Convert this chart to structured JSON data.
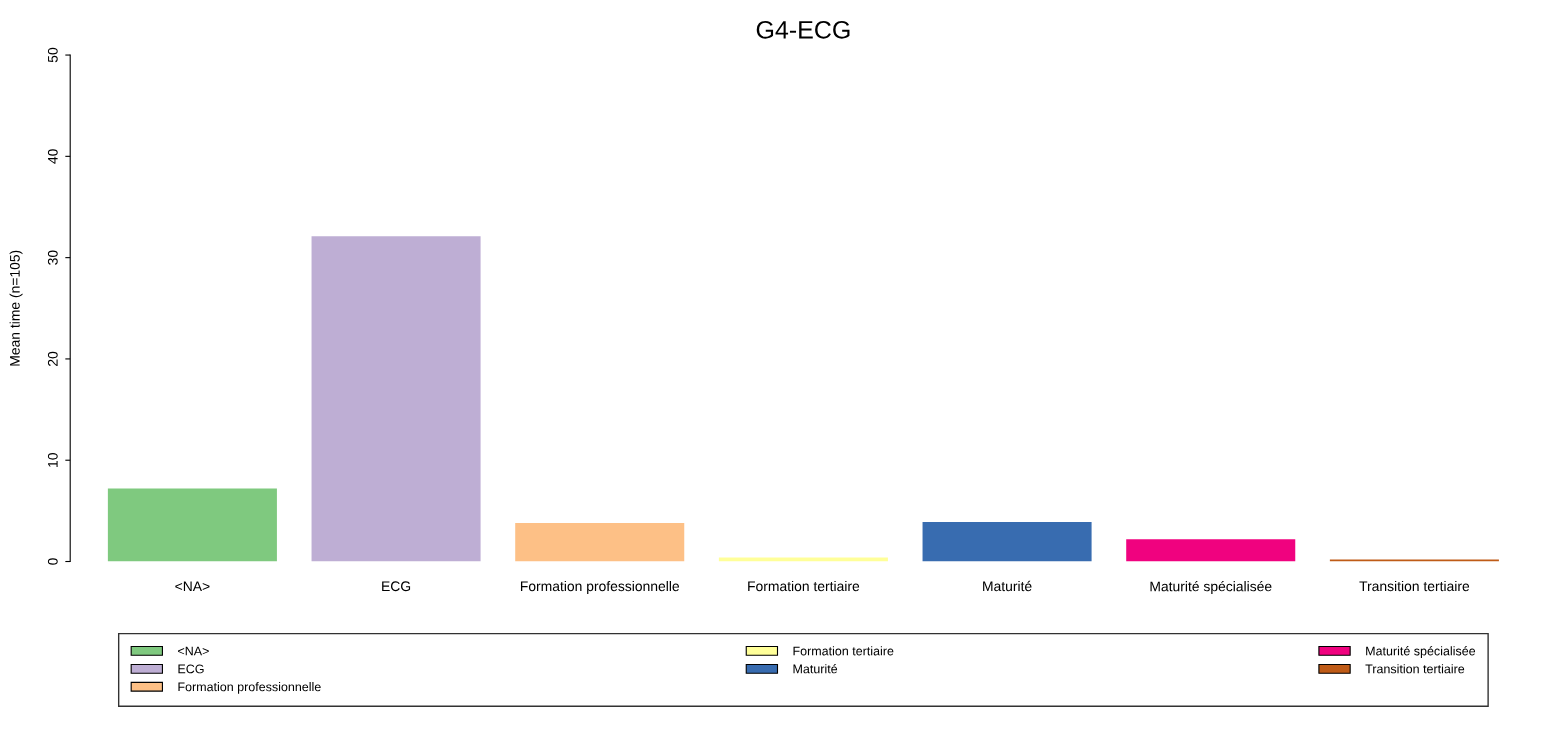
{
  "chart_data": {
    "type": "bar",
    "title": "G4-ECG",
    "ylabel": "Mean time (n=105)",
    "categories": [
      "<NA>",
      "ECG",
      "Formation professionnelle",
      "Formation tertiaire",
      "Maturité",
      "Maturité spécialisée",
      "Transition tertiaire"
    ],
    "series": [
      {
        "name": "<NA>",
        "color": "#7fc97f",
        "values": [
          7.2,
          null,
          null,
          null,
          null,
          null,
          null
        ]
      },
      {
        "name": "ECG",
        "color": "#beaed4",
        "values": [
          null,
          32.1,
          null,
          null,
          null,
          null,
          null
        ]
      },
      {
        "name": "Formation professionnelle",
        "color": "#fdc086",
        "values": [
          null,
          null,
          3.8,
          null,
          null,
          null,
          null
        ]
      },
      {
        "name": "Formation tertiaire",
        "color": "#ffff99",
        "values": [
          null,
          null,
          null,
          0.4,
          null,
          null,
          null
        ]
      },
      {
        "name": "Maturité",
        "color": "#386cb0",
        "values": [
          null,
          null,
          null,
          null,
          3.9,
          null,
          null
        ]
      },
      {
        "name": "Maturité spécialisée",
        "color": "#f0027f",
        "values": [
          null,
          null,
          null,
          null,
          null,
          2.2,
          null
        ]
      },
      {
        "name": "Transition tertiaire",
        "color": "#bf5b17",
        "values": [
          null,
          null,
          null,
          null,
          null,
          null,
          0.2
        ]
      }
    ],
    "ylim": [
      0,
      50
    ],
    "yticks": [
      0,
      10,
      20,
      30,
      40,
      50
    ],
    "grid": false,
    "legend": "bottom"
  }
}
